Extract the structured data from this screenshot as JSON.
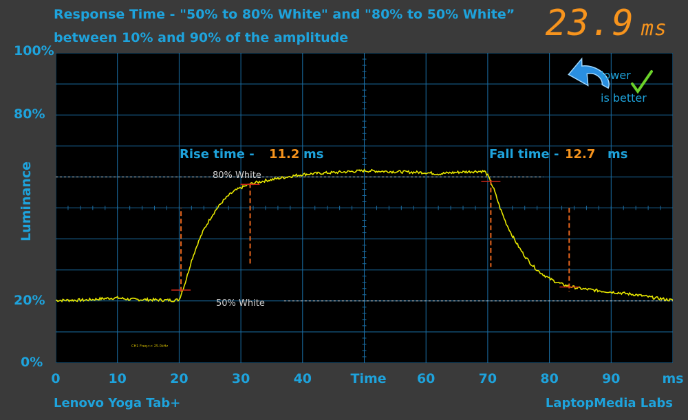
{
  "header": {
    "title_line1": "Response Time - \"50% to 80% White\" and \"80% to 50% White”",
    "title_line2": "between 10% and 90% of the amplitude",
    "total_value": "23.9",
    "total_unit": "ms"
  },
  "footer": {
    "device": "Lenovo Yoga Tab+",
    "source": "LaptopMedia Labs"
  },
  "badge": {
    "line1": "lower",
    "line2": "is better"
  },
  "colors": {
    "accent": "#1ea3dc",
    "value": "#f7941d",
    "trace": "#e8e800",
    "marker": "#e8661d",
    "background": "#3a3a3a",
    "plot_bg": "#000000"
  },
  "chart_data": {
    "type": "line",
    "xlabel": "Time",
    "x_unit": "ms",
    "ylabel": "Luminance",
    "xlim": [
      0,
      100
    ],
    "ylim": [
      0,
      100
    ],
    "x_ticks": [
      "0",
      "10",
      "20",
      "30",
      "40",
      "Time",
      "60",
      "70",
      "80",
      "90",
      "ms"
    ],
    "y_ticks": [
      "0%",
      "20%",
      "80%",
      "100%"
    ],
    "grid": true,
    "reference_lines": [
      {
        "label": "80% White",
        "y": 60
      },
      {
        "label": "50% White",
        "y": 20
      }
    ],
    "annotations": {
      "rise": {
        "label": "Rise time -",
        "value": "11.2",
        "unit": "ms"
      },
      "fall": {
        "label": "Fall time -",
        "value": "12.7",
        "unit": "ms"
      }
    },
    "markers": {
      "rise_start_x": 20.3,
      "rise_end_x": 31.5,
      "fall_start_x": 70.5,
      "fall_end_x": 83.2
    },
    "probe_note": "CH1 Freq<<  25.0kHz",
    "series": [
      {
        "values": [
          [
            0,
            20.2
          ],
          [
            5,
            20.3
          ],
          [
            8,
            20.8
          ],
          [
            10,
            21.0
          ],
          [
            12,
            20.5
          ],
          [
            15,
            20.4
          ],
          [
            19,
            20.2
          ],
          [
            20,
            20.4
          ],
          [
            21,
            26
          ],
          [
            22,
            33
          ],
          [
            23,
            38.5
          ],
          [
            24,
            43
          ],
          [
            25,
            46.5
          ],
          [
            26,
            49.5
          ],
          [
            27,
            52
          ],
          [
            28,
            54
          ],
          [
            29,
            55.5
          ],
          [
            30,
            56.5
          ],
          [
            31,
            57.3
          ],
          [
            32,
            58.0
          ],
          [
            34,
            58.8
          ],
          [
            36,
            59.5
          ],
          [
            38,
            60.2
          ],
          [
            40,
            60.8
          ],
          [
            42,
            61.1
          ],
          [
            45,
            61.4
          ],
          [
            50,
            62.0
          ],
          [
            55,
            61.7
          ],
          [
            60,
            61.4
          ],
          [
            62,
            61.0
          ],
          [
            65,
            61.5
          ],
          [
            68,
            61.8
          ],
          [
            69.5,
            61.8
          ],
          [
            70,
            60.5
          ],
          [
            71,
            56
          ],
          [
            72,
            50
          ],
          [
            73,
            45
          ],
          [
            74,
            41
          ],
          [
            75,
            37.5
          ],
          [
            76,
            34.5
          ],
          [
            77,
            32
          ],
          [
            78,
            30
          ],
          [
            79,
            28.5
          ],
          [
            80,
            27.2
          ],
          [
            81,
            26.2
          ],
          [
            82,
            25.4
          ],
          [
            83,
            24.8
          ],
          [
            85,
            24.0
          ],
          [
            88,
            23.3
          ],
          [
            91,
            22.7
          ],
          [
            94,
            22.0
          ],
          [
            97,
            21.0
          ],
          [
            100,
            20.2
          ]
        ]
      }
    ]
  }
}
